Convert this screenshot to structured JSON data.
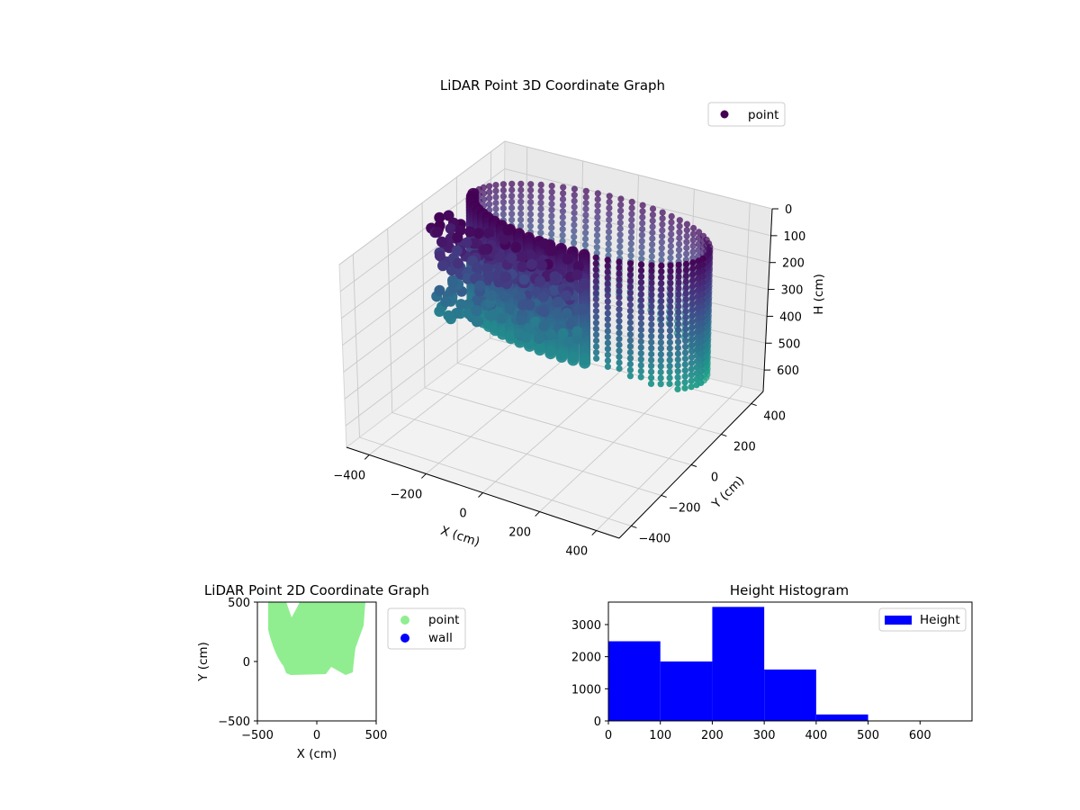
{
  "figure": {
    "background": "#ffffff"
  },
  "chart_data": [
    {
      "type": "scatter",
      "projection": "3d",
      "title": "LiDAR Point 3D Coordinate Graph",
      "xlabel": "X (cm)",
      "ylabel": "Y (cm)",
      "zlabel": "H (cm)",
      "x_ticks": [
        "−400",
        "−200",
        "0",
        "200",
        "400"
      ],
      "y_ticks": [
        "−400",
        "−200",
        "0",
        "200",
        "400"
      ],
      "z_ticks": [
        "0",
        "100",
        "200",
        "300",
        "400",
        "500",
        "600"
      ],
      "z_inverted": true,
      "xlim": [
        -480,
        480
      ],
      "ylim": [
        -480,
        480
      ],
      "zlim": [
        0,
        680
      ],
      "colormap": "viridis",
      "legend": {
        "placement": "top-right",
        "entries": [
          {
            "label": "point",
            "color": "#440154"
          }
        ]
      },
      "grid": true,
      "point_cloud": {
        "shape": "ring",
        "center_x": 30,
        "center_y": 300,
        "radius": 420,
        "height_range": [
          0,
          480
        ],
        "dense_segment": "front-left, X −400 to 100, H 0–300"
      }
    },
    {
      "type": "scatter",
      "title": "LiDAR Point 2D Coordinate Graph",
      "xlabel": "X (cm)",
      "ylabel": "Y (cm)",
      "xlim": [
        -500,
        500
      ],
      "ylim": [
        -500,
        500
      ],
      "x_ticks": [
        "−500",
        "0",
        "500"
      ],
      "y_ticks": [
        "−500",
        "0",
        "500"
      ],
      "legend": {
        "placement": "outside-right",
        "entries": [
          {
            "label": "point",
            "color": "#90ee90"
          },
          {
            "label": "wall",
            "color": "#0000ff"
          }
        ]
      },
      "series": [
        {
          "name": "point",
          "color": "#90ee90",
          "extent": {
            "x": [
              -420,
              420
            ],
            "y": [
              -120,
              500
            ]
          }
        },
        {
          "name": "wall",
          "color": "#0000ff",
          "values": []
        }
      ]
    },
    {
      "type": "bar",
      "subtype": "histogram",
      "title": "Height Histogram",
      "xlim": [
        0,
        700
      ],
      "ylim": [
        0,
        3700
      ],
      "x_ticks": [
        "0",
        "100",
        "200",
        "300",
        "400",
        "500",
        "600"
      ],
      "y_ticks": [
        "0",
        "1000",
        "2000",
        "3000"
      ],
      "color": "#0000ff",
      "legend": {
        "placement": "top-right",
        "entries": [
          {
            "label": "Height",
            "color": "#0000ff"
          }
        ]
      },
      "bins": [
        {
          "x0": 0,
          "x1": 100,
          "count": 2480
        },
        {
          "x0": 100,
          "x1": 200,
          "count": 1850
        },
        {
          "x0": 200,
          "x1": 300,
          "count": 3550
        },
        {
          "x0": 300,
          "x1": 400,
          "count": 1600
        },
        {
          "x0": 400,
          "x1": 500,
          "count": 200
        }
      ]
    }
  ]
}
